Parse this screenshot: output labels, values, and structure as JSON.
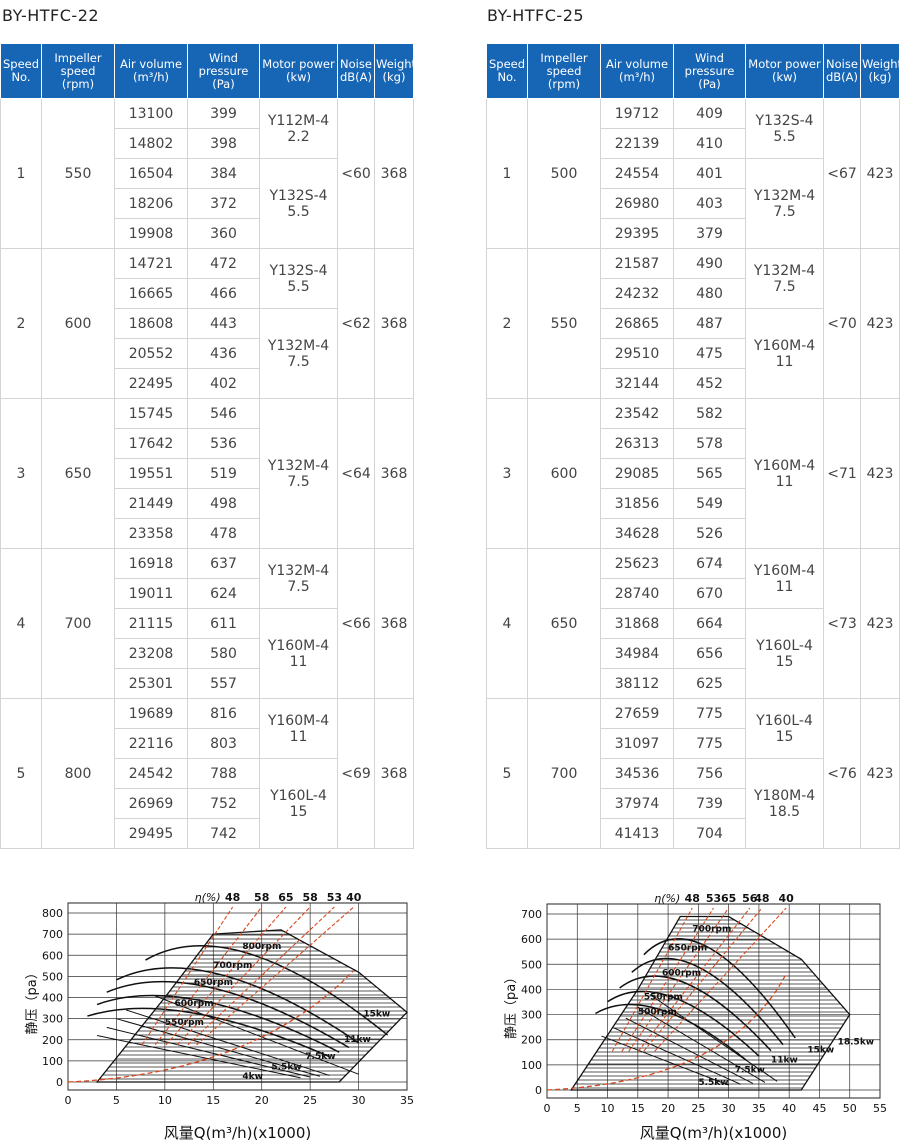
{
  "tables": [
    {
      "title": "BY-HTFC-22",
      "headers": [
        "Speed\nNo.",
        "Impeller\nspeed\n(rpm)",
        "Air volume\n(m³/h)",
        "Wind\npressure\n(Pa)",
        "Motor power\n(kw)",
        "Noise\ndB(A)",
        "Weight\n(kg)"
      ],
      "groups": [
        {
          "speed_no": 1,
          "impeller_speed": 550,
          "noise": "<60",
          "weight": 368,
          "air_volume": [
            13100,
            14802,
            16504,
            18206,
            19908
          ],
          "pressure": [
            399,
            398,
            384,
            372,
            360
          ],
          "motors": [
            {
              "model": "Y112M-4",
              "power": 2.2
            },
            {
              "model": "Y132S-4",
              "power": 5.5
            }
          ]
        },
        {
          "speed_no": 2,
          "impeller_speed": 600,
          "noise": "<62",
          "weight": 368,
          "air_volume": [
            14721,
            16665,
            18608,
            20552,
            22495
          ],
          "pressure": [
            472,
            466,
            443,
            436,
            402
          ],
          "motors": [
            {
              "model": "Y132S-4",
              "power": 5.5
            },
            {
              "model": "Y132M-4",
              "power": 7.5
            }
          ]
        },
        {
          "speed_no": 3,
          "impeller_speed": 650,
          "noise": "<64",
          "weight": 368,
          "air_volume": [
            15745,
            17642,
            19551,
            21449,
            23358
          ],
          "pressure": [
            546,
            536,
            519,
            498,
            478
          ],
          "motors": [
            {
              "model": "Y132M-4",
              "power": 7.5
            }
          ]
        },
        {
          "speed_no": 4,
          "impeller_speed": 700,
          "noise": "<66",
          "weight": 368,
          "air_volume": [
            16918,
            19011,
            21115,
            23208,
            25301
          ],
          "pressure": [
            637,
            624,
            611,
            580,
            557
          ],
          "motors": [
            {
              "model": "Y132M-4",
              "power": 7.5
            },
            {
              "model": "Y160M-4",
              "power": 11
            }
          ]
        },
        {
          "speed_no": 5,
          "impeller_speed": 800,
          "noise": "<69",
          "weight": 368,
          "air_volume": [
            19689,
            22116,
            24542,
            26969,
            29495
          ],
          "pressure": [
            816,
            803,
            788,
            752,
            742
          ],
          "motors": [
            {
              "model": "Y160M-4",
              "power": 11
            },
            {
              "model": "Y160L-4",
              "power": 15
            }
          ]
        }
      ]
    },
    {
      "title": "BY-HTFC-25",
      "headers": [
        "Speed\nNo.",
        "Impeller\nspeed\n(rpm)",
        "Air volume\n(m³/h)",
        "Wind\npressure\n(Pa)",
        "Motor power\n(kw)",
        "Noise\ndB(A)",
        "Weight\n(kg)"
      ],
      "groups": [
        {
          "speed_no": 1,
          "impeller_speed": 500,
          "noise": "<67",
          "weight": 423,
          "air_volume": [
            19712,
            22139,
            24554,
            26980,
            29395
          ],
          "pressure": [
            409,
            410,
            401,
            403,
            379
          ],
          "motors": [
            {
              "model": "Y132S-4",
              "power": 5.5
            },
            {
              "model": "Y132M-4",
              "power": 7.5
            }
          ]
        },
        {
          "speed_no": 2,
          "impeller_speed": 550,
          "noise": "<70",
          "weight": 423,
          "air_volume": [
            21587,
            24232,
            26865,
            29510,
            32144
          ],
          "pressure": [
            490,
            480,
            487,
            475,
            452
          ],
          "motors": [
            {
              "model": "Y132M-4",
              "power": 7.5
            },
            {
              "model": "Y160M-4",
              "power": 11
            }
          ]
        },
        {
          "speed_no": 3,
          "impeller_speed": 600,
          "noise": "<71",
          "weight": 423,
          "air_volume": [
            23542,
            26313,
            29085,
            31856,
            34628
          ],
          "pressure": [
            582,
            578,
            565,
            549,
            526
          ],
          "motors": [
            {
              "model": "Y160M-4",
              "power": 11
            }
          ]
        },
        {
          "speed_no": 4,
          "impeller_speed": 650,
          "noise": "<73",
          "weight": 423,
          "air_volume": [
            25623,
            28740,
            31868,
            34984,
            38112
          ],
          "pressure": [
            674,
            670,
            664,
            656,
            625
          ],
          "motors": [
            {
              "model": "Y160M-4",
              "power": 11
            },
            {
              "model": "Y160L-4",
              "power": 15
            }
          ]
        },
        {
          "speed_no": 5,
          "impeller_speed": 700,
          "noise": "<76",
          "weight": 423,
          "air_volume": [
            27659,
            31097,
            34536,
            37974,
            41413
          ],
          "pressure": [
            775,
            775,
            756,
            739,
            704
          ],
          "motors": [
            {
              "model": "Y160L-4",
              "power": 15
            },
            {
              "model": "Y180M-4",
              "power": 18.5
            }
          ]
        }
      ]
    }
  ],
  "charts": [
    {
      "y_label": "静压（pa）",
      "x_label": "风量Q(m³/h)(x1000)",
      "eta_label": "η(%)",
      "eta_values": [
        48,
        58,
        65,
        58,
        53,
        40
      ],
      "xlim": [
        0,
        35
      ],
      "ylim": [
        0,
        800
      ],
      "xticks": [
        0,
        5,
        10,
        15,
        20,
        25,
        30,
        35
      ],
      "yticks": [
        0,
        100,
        200,
        300,
        400,
        500,
        600,
        700,
        800
      ],
      "rpm_labels": [
        "800rpm",
        "700rpm",
        "650rpm",
        "600rpm",
        "550rpm"
      ],
      "kw_labels": [
        "15kw",
        "11kw",
        "7.5kw",
        "5.5kw",
        "4kw"
      ]
    },
    {
      "y_label": "静压（pa）",
      "x_label": "风量Q(m³/h)(x1000)",
      "eta_label": "η(%)",
      "eta_values": [
        48,
        53,
        65,
        56,
        48,
        40
      ],
      "xlim": [
        0,
        55
      ],
      "ylim": [
        0,
        700
      ],
      "xticks": [
        0,
        5,
        10,
        15,
        20,
        25,
        30,
        35,
        40,
        45,
        50,
        55
      ],
      "yticks": [
        0,
        100,
        200,
        300,
        400,
        500,
        600,
        700
      ],
      "rpm_labels": [
        "700rpm",
        "650rpm",
        "600rpm",
        "550rpm",
        "500rpm"
      ],
      "kw_labels": [
        "18.5kw",
        "15kw",
        "11kw",
        "7.5kw",
        "5.5kw"
      ]
    }
  ]
}
